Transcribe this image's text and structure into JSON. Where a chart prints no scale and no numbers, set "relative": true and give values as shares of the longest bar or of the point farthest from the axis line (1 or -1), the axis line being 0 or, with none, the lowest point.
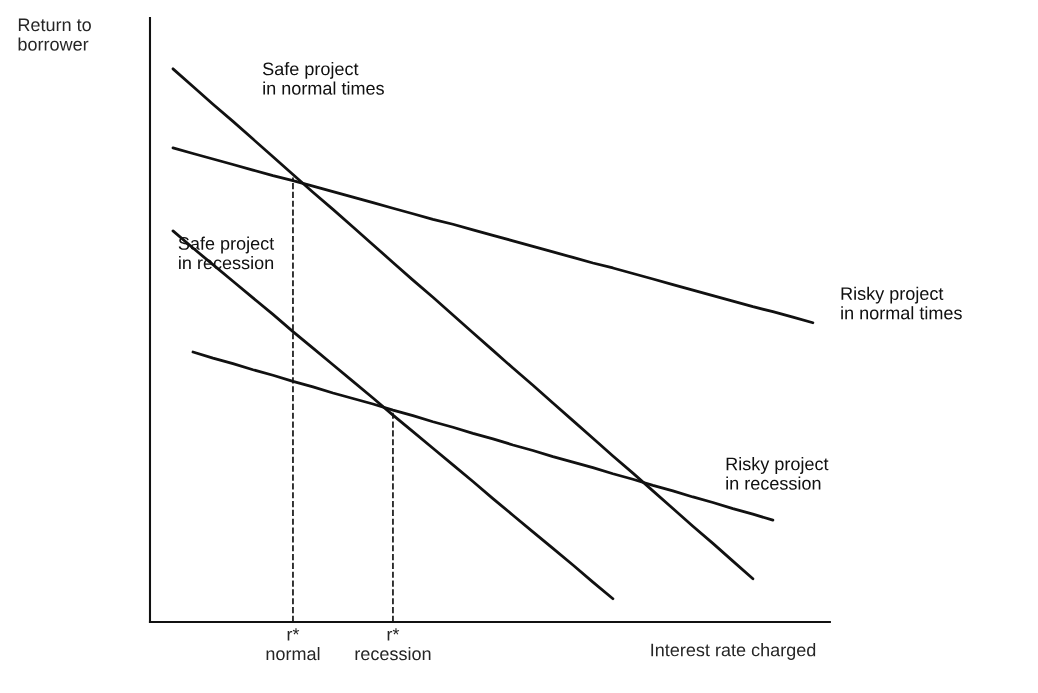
{
  "chart_data": {
    "type": "line",
    "relative": true,
    "xlabel": "Interest rate charged",
    "ylabel": "Return to\nborrower",
    "categories": [
      null,
      null,
      null,
      null,
      null,
      null,
      null,
      "r*\nnormal",
      null,
      null,
      null,
      null,
      "r*\nrecession",
      null,
      null,
      null,
      null,
      null,
      null,
      null,
      null,
      null,
      null,
      null,
      null,
      null,
      null,
      null,
      null,
      null,
      null,
      null,
      null,
      null
    ],
    "series": [
      {
        "name": "Safe project\nin normal times",
        "color": "#111111",
        "line_style": "solid",
        "values": [
          null,
          1.0,
          0.968,
          0.936,
          0.905,
          0.873,
          0.841,
          0.809,
          0.777,
          0.746,
          0.714,
          0.682,
          0.65,
          0.618,
          0.587,
          0.555,
          0.523,
          0.491,
          0.459,
          0.428,
          0.396,
          0.364,
          0.332,
          0.3,
          0.269,
          0.237,
          0.205,
          0.173,
          0.142,
          0.11,
          0.078,
          null,
          null,
          null
        ]
      },
      {
        "name": "Risky project\nin normal times",
        "color": "#111111",
        "line_style": "solid",
        "values": [
          null,
          0.857,
          0.847,
          0.837,
          0.827,
          0.817,
          0.807,
          0.798,
          0.788,
          0.778,
          0.768,
          0.758,
          0.748,
          0.738,
          0.728,
          0.719,
          0.709,
          0.699,
          0.689,
          0.679,
          0.669,
          0.659,
          0.649,
          0.64,
          0.63,
          0.62,
          0.61,
          0.6,
          0.59,
          0.58,
          0.57,
          0.561,
          0.551,
          0.541
        ]
      },
      {
        "name": "Safe project\nin recession",
        "color": "#111111",
        "line_style": "solid",
        "values": [
          null,
          0.707,
          0.676,
          0.646,
          0.616,
          0.586,
          0.556,
          0.525,
          0.495,
          0.465,
          0.435,
          0.405,
          0.374,
          0.344,
          0.314,
          0.284,
          0.254,
          0.223,
          0.193,
          0.163,
          0.133,
          0.103,
          0.072,
          0.042,
          null,
          null,
          null,
          null,
          null,
          null,
          null,
          null,
          null,
          null
        ]
      },
      {
        "name": "Risky project\nin recession",
        "color": "#111111",
        "line_style": "solid",
        "values": [
          null,
          null,
          0.488,
          0.477,
          0.467,
          0.456,
          0.446,
          0.435,
          0.425,
          0.414,
          0.404,
          0.394,
          0.383,
          0.373,
          0.362,
          0.352,
          0.341,
          0.331,
          0.32,
          0.31,
          0.299,
          0.289,
          0.279,
          0.268,
          0.258,
          0.247,
          0.237,
          0.226,
          0.216,
          0.205,
          0.195,
          0.184,
          null,
          null
        ]
      }
    ],
    "ref_lines": [
      {
        "axis": "x",
        "value": "r*\nnormal",
        "line_style": "dashed",
        "color": "#111111"
      },
      {
        "axis": "x",
        "value": "r*\nrecession",
        "line_style": "dashed",
        "color": "#111111"
      }
    ]
  }
}
